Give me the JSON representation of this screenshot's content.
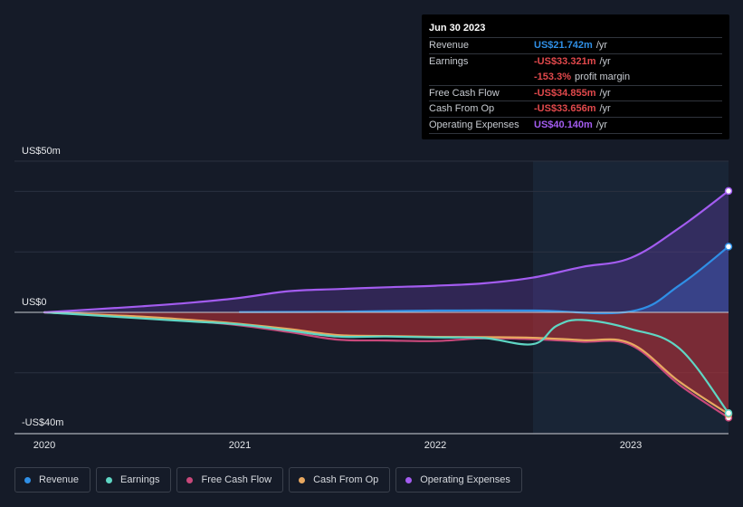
{
  "tooltip": {
    "date": "Jun 30 2023",
    "rows": [
      {
        "label": "Revenue",
        "value": "US$21.742m",
        "unit": "/yr",
        "color": "#2f8fe6"
      },
      {
        "label": "Earnings",
        "value": "-US$33.321m",
        "unit": "/yr",
        "color": "#e2494c"
      },
      {
        "label": "",
        "value": "-153.3%",
        "unit": "profit margin",
        "color": "#e2494c"
      },
      {
        "label": "Free Cash Flow",
        "value": "-US$34.855m",
        "unit": "/yr",
        "color": "#e2494c"
      },
      {
        "label": "Cash From Op",
        "value": "-US$33.656m",
        "unit": "/yr",
        "color": "#e2494c"
      },
      {
        "label": "Operating Expenses",
        "value": "US$40.140m",
        "unit": "/yr",
        "color": "#a35cf0"
      }
    ]
  },
  "legend": [
    {
      "label": "Revenue",
      "color": "#2f8fe6"
    },
    {
      "label": "Earnings",
      "color": "#5fd6c4"
    },
    {
      "label": "Free Cash Flow",
      "color": "#c8487a"
    },
    {
      "label": "Cash From Op",
      "color": "#e8a860"
    },
    {
      "label": "Operating Expenses",
      "color": "#a35cf0"
    }
  ],
  "chart_data": {
    "type": "line",
    "title": "",
    "unit": "US$ millions",
    "y_tick_labels": {
      "top": "US$50m",
      "zero": "US$0",
      "bottom": "-US$40m"
    },
    "ylim": [
      -40,
      50
    ],
    "x_tick_labels": [
      "2020",
      "2021",
      "2022",
      "2023"
    ],
    "x_tick_values": [
      2020.0,
      2021.0,
      2022.0,
      2023.0
    ],
    "xlim": [
      2019.85,
      2023.5
    ],
    "highlight_start": 2022.5,
    "series": [
      {
        "name": "Revenue",
        "color": "#2f8fe6",
        "fill": "rgba(47,120,220,0.35)",
        "x": [
          2021.0,
          2021.5,
          2022.0,
          2022.5,
          2023.0,
          2023.25,
          2023.5
        ],
        "values": [
          0.1,
          0.2,
          0.6,
          0.6,
          0.3,
          9.0,
          21.742
        ]
      },
      {
        "name": "Earnings",
        "color": "#5fd6c4",
        "fill": null,
        "x": [
          2020.0,
          2020.25,
          2020.5,
          2020.75,
          2021.0,
          2021.25,
          2021.5,
          2021.75,
          2022.0,
          2022.25,
          2022.5,
          2022.62,
          2022.75,
          2023.0,
          2023.25,
          2023.5
        ],
        "values": [
          0,
          -1,
          -2,
          -3,
          -4,
          -6,
          -8,
          -8,
          -8.3,
          -8.5,
          -10.5,
          -4.5,
          -2.5,
          -5.5,
          -12,
          -33.321
        ]
      },
      {
        "name": "Free Cash Flow",
        "color": "#c8487a",
        "fill": null,
        "x": [
          2020.0,
          2020.25,
          2020.5,
          2020.75,
          2021.0,
          2021.25,
          2021.5,
          2021.75,
          2022.0,
          2022.25,
          2022.5,
          2022.75,
          2023.0,
          2023.25,
          2023.5
        ],
        "values": [
          0,
          -0.8,
          -1.6,
          -2.8,
          -4.3,
          -6.5,
          -9,
          -9.3,
          -9.5,
          -8.6,
          -8.9,
          -9.7,
          -10.8,
          -24,
          -34.855
        ]
      },
      {
        "name": "Cash From Op",
        "color": "#e8a860",
        "fill": "rgba(200,50,55,0.55)",
        "x": [
          2020.0,
          2020.25,
          2020.5,
          2020.75,
          2021.0,
          2021.25,
          2021.5,
          2021.75,
          2022.0,
          2022.25,
          2022.5,
          2022.75,
          2023.0,
          2023.25,
          2023.5
        ],
        "values": [
          0,
          -0.7,
          -1.4,
          -2.5,
          -3.8,
          -5.5,
          -7.5,
          -7.8,
          -8.1,
          -8.2,
          -8.4,
          -9.2,
          -10.3,
          -23,
          -33.656
        ]
      },
      {
        "name": "Operating Expenses",
        "color": "#a35cf0",
        "fill": "rgba(120,70,200,0.28)",
        "x": [
          2020.0,
          2020.25,
          2020.5,
          2020.75,
          2021.0,
          2021.25,
          2021.5,
          2021.75,
          2022.0,
          2022.25,
          2022.5,
          2022.75,
          2023.0,
          2023.25,
          2023.5
        ],
        "values": [
          0,
          1,
          2,
          3.2,
          4.8,
          7,
          7.7,
          8.3,
          8.8,
          9.6,
          11.5,
          15,
          18,
          28,
          40.14
        ]
      }
    ]
  }
}
